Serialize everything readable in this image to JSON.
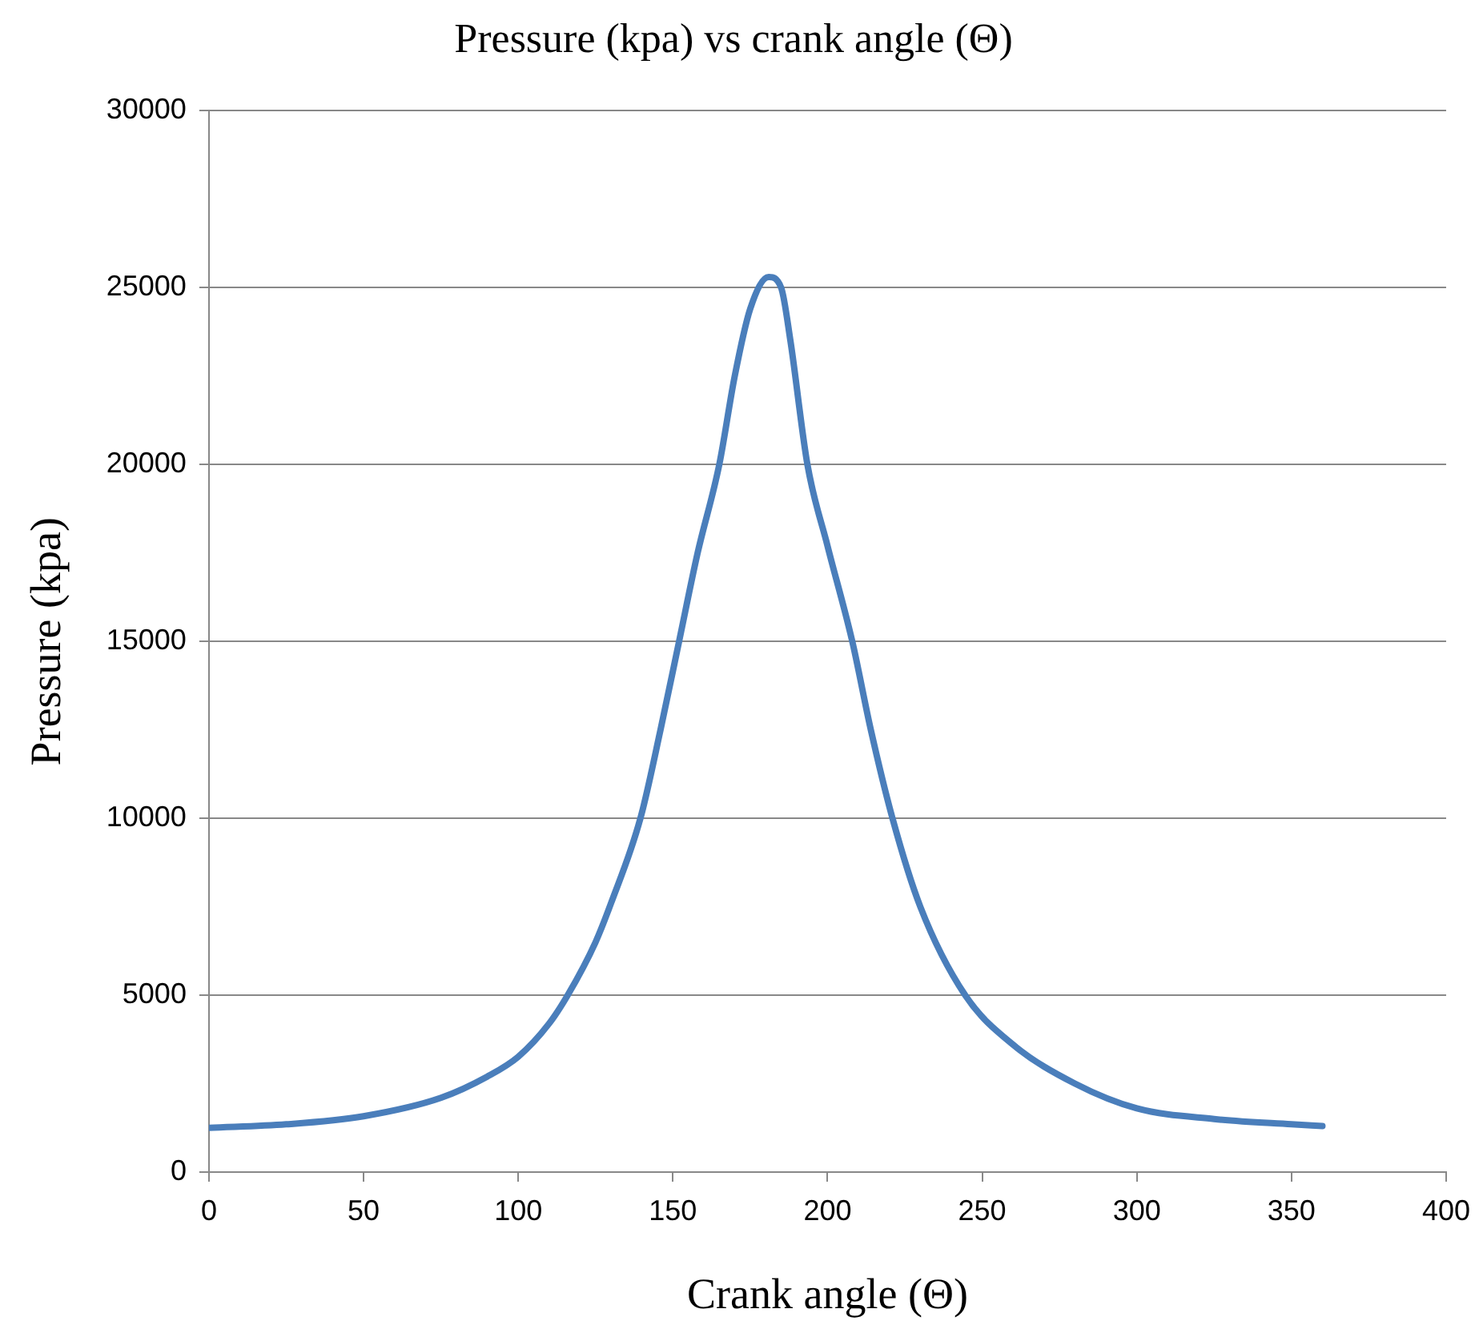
{
  "chart_data": {
    "type": "line",
    "title": "Pressure (kpa) vs crank angle (Θ)",
    "xlabel": "Crank angle (Θ)",
    "ylabel": "Pressure (kpa)",
    "x": [
      0,
      25,
      50,
      75,
      90,
      100,
      110,
      116,
      125,
      130,
      139.5,
      146,
      152,
      158,
      165,
      170,
      175,
      181,
      185,
      188,
      193.5,
      200,
      208,
      214,
      221,
      230,
      244.5,
      260,
      280,
      300,
      325,
      350,
      360
    ],
    "series": [
      {
        "color": "#4a7ebb",
        "values": [
          1250,
          1350,
          1580,
          2100,
          2700,
          3260,
          4200,
          5000,
          6500,
          7600,
          10000,
          12500,
          15000,
          17500,
          20000,
          22500,
          24400,
          25300,
          25000,
          23500,
          20000,
          17700,
          15000,
          12500,
          10000,
          7500,
          5000,
          3600,
          2500,
          1800,
          1500,
          1350,
          1300
        ]
      }
    ],
    "xlim": [
      0,
      400
    ],
    "xticks": [
      0,
      50,
      100,
      150,
      200,
      250,
      300,
      350,
      400
    ],
    "ylim": [
      0,
      30000
    ],
    "yticks": [
      0,
      5000,
      10000,
      15000,
      20000,
      25000,
      30000
    ],
    "grid": "y",
    "legend": false,
    "marker": "none",
    "line_style": "solid"
  }
}
